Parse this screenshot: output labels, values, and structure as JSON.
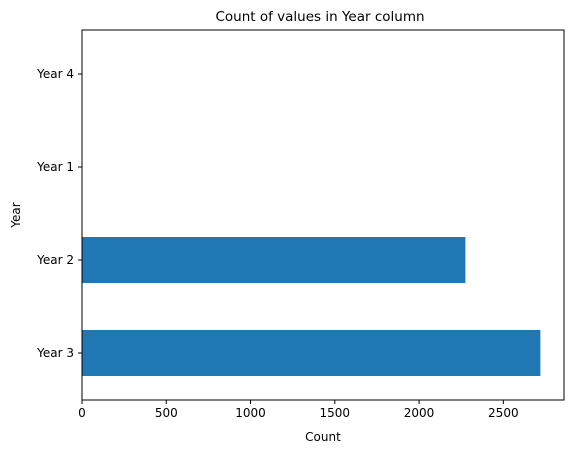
{
  "chart_data": {
    "type": "bar",
    "orientation": "horizontal",
    "title": "Count of values in Year column",
    "xlabel": "Count",
    "ylabel": "Year",
    "categories": [
      "Year 3",
      "Year 2",
      "Year 1",
      "Year 4"
    ],
    "values": [
      2720,
      2275,
      0,
      0
    ],
    "xlim": [
      0,
      2860
    ],
    "xticks": [
      0,
      500,
      1000,
      1500,
      2000,
      2500
    ],
    "grid": false,
    "bar_color": "#1f77b4"
  }
}
